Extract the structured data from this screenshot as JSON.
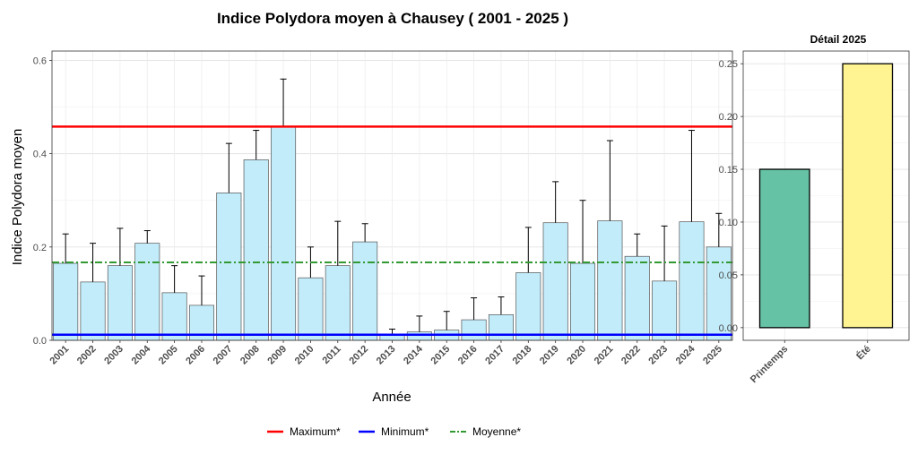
{
  "chart_data": [
    {
      "type": "bar",
      "title": "Indice Polydora moyen à Chausey ( 2001 - 2025 )",
      "xlabel": "Année",
      "ylabel": "Indice Polydora moyen",
      "ylim": [
        0,
        0.62
      ],
      "yticks": [
        "0.0",
        "0.2",
        "0.4",
        "0.6"
      ],
      "grid": true,
      "categories": [
        "2001",
        "2002",
        "2003",
        "2004",
        "2005",
        "2006",
        "2007",
        "2008",
        "2009",
        "2010",
        "2011",
        "2012",
        "2013",
        "2014",
        "2015",
        "2016",
        "2017",
        "2018",
        "2019",
        "2020",
        "2021",
        "2022",
        "2023",
        "2024",
        "2025"
      ],
      "values": [
        0.165,
        0.125,
        0.16,
        0.208,
        0.102,
        0.075,
        0.316,
        0.387,
        0.458,
        0.134,
        0.16,
        0.211,
        0.012,
        0.018,
        0.022,
        0.044,
        0.055,
        0.145,
        0.252,
        0.165,
        0.256,
        0.18,
        0.127,
        0.254,
        0.2
      ],
      "error_upper": [
        0.228,
        0.208,
        0.24,
        0.235,
        0.16,
        0.138,
        0.422,
        0.45,
        0.56,
        0.2,
        0.255,
        0.25,
        0.024,
        0.052,
        0.062,
        0.091,
        0.093,
        0.242,
        0.34,
        0.3,
        0.428,
        0.228,
        0.245,
        0.45,
        0.272
      ],
      "bar_color": "#c2ecfa",
      "reference_lines": [
        {
          "name": "Maximum*",
          "value": 0.458,
          "color": "#ff0000",
          "style": "solid"
        },
        {
          "name": "Minimum*",
          "value": 0.012,
          "color": "#0000ff",
          "style": "solid"
        },
        {
          "name": "Moyenne*",
          "value": 0.167,
          "color": "#339933",
          "style": "dashdot"
        }
      ],
      "legend_position": "bottom"
    },
    {
      "type": "bar",
      "title": "Détail 2025",
      "categories": [
        "Printemps",
        "Été"
      ],
      "values": [
        0.15,
        0.25
      ],
      "colors": [
        "#66c2a5",
        "#fff491"
      ],
      "ylim": [
        -0.012,
        0.262
      ],
      "yticks": [
        "0.00",
        "0.05",
        "0.10",
        "0.15",
        "0.20",
        "0.25"
      ],
      "grid": true
    }
  ]
}
